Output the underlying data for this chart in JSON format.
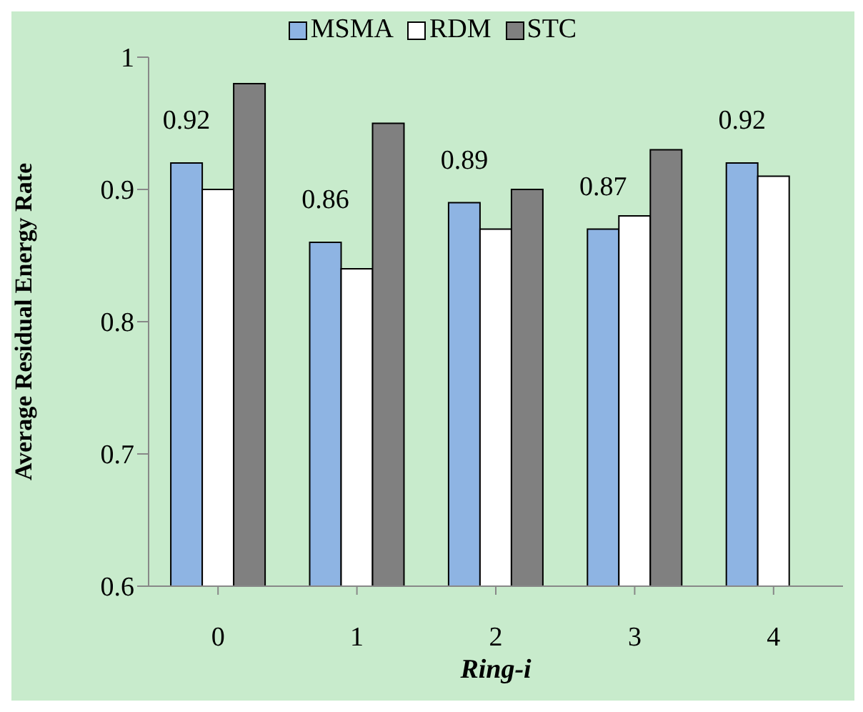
{
  "chart_data": {
    "type": "bar",
    "xlabel": "Ring-i",
    "ylabel": "Average Residual Energy Rate",
    "categories": [
      "0",
      "1",
      "2",
      "3",
      "4"
    ],
    "series": [
      {
        "name": "MSMA",
        "color": "#8eb4e3",
        "values": [
          0.92,
          0.86,
          0.89,
          0.87,
          0.92
        ],
        "value_labels": [
          "0.92",
          "0.86",
          "0.89",
          "0.87",
          "0.92"
        ]
      },
      {
        "name": "RDM",
        "color": "#ffffff",
        "values": [
          0.9,
          0.84,
          0.87,
          0.88,
          0.91
        ]
      },
      {
        "name": "STC",
        "color": "#808080",
        "values": [
          0.98,
          0.95,
          0.9,
          0.93,
          null
        ]
      }
    ],
    "ylim": [
      0.6,
      1
    ],
    "yticks": [
      0.6,
      0.7,
      0.8,
      0.9,
      1
    ],
    "legend": "top"
  }
}
